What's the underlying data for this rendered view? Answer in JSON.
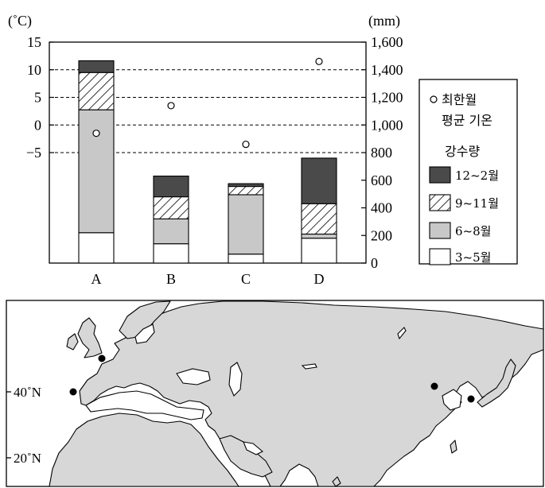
{
  "chart_data": {
    "type": "bar",
    "subtype": "stacked-bar-with-scatter",
    "categories": [
      "A",
      "B",
      "C",
      "D"
    ],
    "left_axis": {
      "unit": "(˚C)",
      "ticks": [
        "15",
        "10",
        "5",
        "0",
        "−5"
      ],
      "range": [
        -25,
        15
      ]
    },
    "right_axis": {
      "unit": "(mm)",
      "ticks": [
        "1,600",
        "1,400",
        "1,200",
        "1,000",
        "800",
        "600",
        "400",
        "200",
        "0"
      ],
      "range": [
        0,
        1600
      ]
    },
    "gridlines_at_celsius": [
      10,
      5,
      0,
      -5
    ],
    "series": [
      {
        "name": "3~5월",
        "legend_label": "3~5월",
        "fill": "#ffffff",
        "pattern": "none",
        "values": [
          220,
          140,
          65,
          180
        ]
      },
      {
        "name": "6~8월",
        "legend_label": "6~8월",
        "fill": "#c8c8c8",
        "pattern": "none",
        "values": [
          890,
          180,
          430,
          30
        ]
      },
      {
        "name": "9~11월",
        "legend_label": "9~11월",
        "fill": "#ffffff",
        "pattern": "hatch",
        "values": [
          270,
          160,
          60,
          220
        ]
      },
      {
        "name": "12~2월",
        "legend_label": "12~2월",
        "fill": "#4a4a4a",
        "pattern": "none",
        "values": [
          85,
          150,
          20,
          330
        ]
      }
    ],
    "coldest_month_temp": {
      "legend_label_line1": "최한월",
      "legend_label_line2": "평균 기온",
      "values": [
        -1.5,
        3.5,
        -3.5,
        11.5
      ]
    },
    "precip_legend_title": "강수량",
    "legend_placement": "right"
  },
  "map": {
    "lat_labels": [
      "40˚N",
      "20˚N"
    ],
    "points": [
      {
        "name": "point-iberia-coast",
        "lat": 40,
        "lon": -9
      },
      {
        "name": "point-france",
        "lat": 47,
        "lon": 2
      },
      {
        "name": "point-north-china",
        "lat": 41,
        "lon": 117
      },
      {
        "name": "point-korea",
        "lat": 37,
        "lon": 127
      }
    ]
  }
}
